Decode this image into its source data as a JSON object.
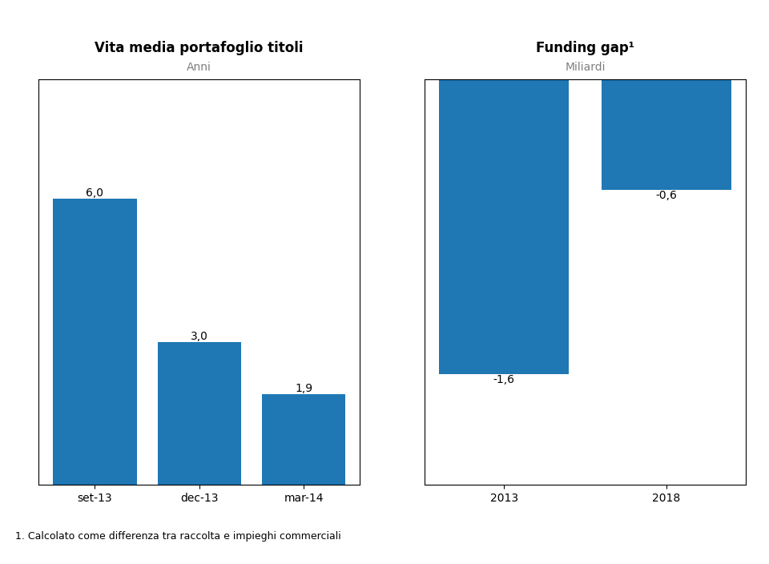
{
  "chart_data": [
    {
      "type": "bar",
      "title": "Vita media portafoglio titoli",
      "subtitle": "Anni",
      "categories": [
        "set-13",
        "dec-13",
        "mar-14"
      ],
      "values": [
        6.0,
        3.0,
        1.9
      ],
      "value_labels": [
        "6,0",
        "3,0",
        "1,9"
      ],
      "data_labels": true,
      "ylim": [
        0,
        8.5
      ],
      "yticks": [],
      "tick_labels": "x"
    },
    {
      "type": "bar",
      "title": "Funding gap¹",
      "subtitle": "Miliardi",
      "categories": [
        "2013",
        "2018"
      ],
      "values": [
        -1.6,
        -0.6
      ],
      "value_labels": [
        "-1,6",
        "-0,6"
      ],
      "data_labels": true,
      "ylim": [
        -2.2,
        0
      ],
      "yticks": [],
      "tick_labels": "x",
      "annotations": [
        "1. Calcolato come differenza tra raccolta e impieghi commerciali"
      ]
    }
  ]
}
